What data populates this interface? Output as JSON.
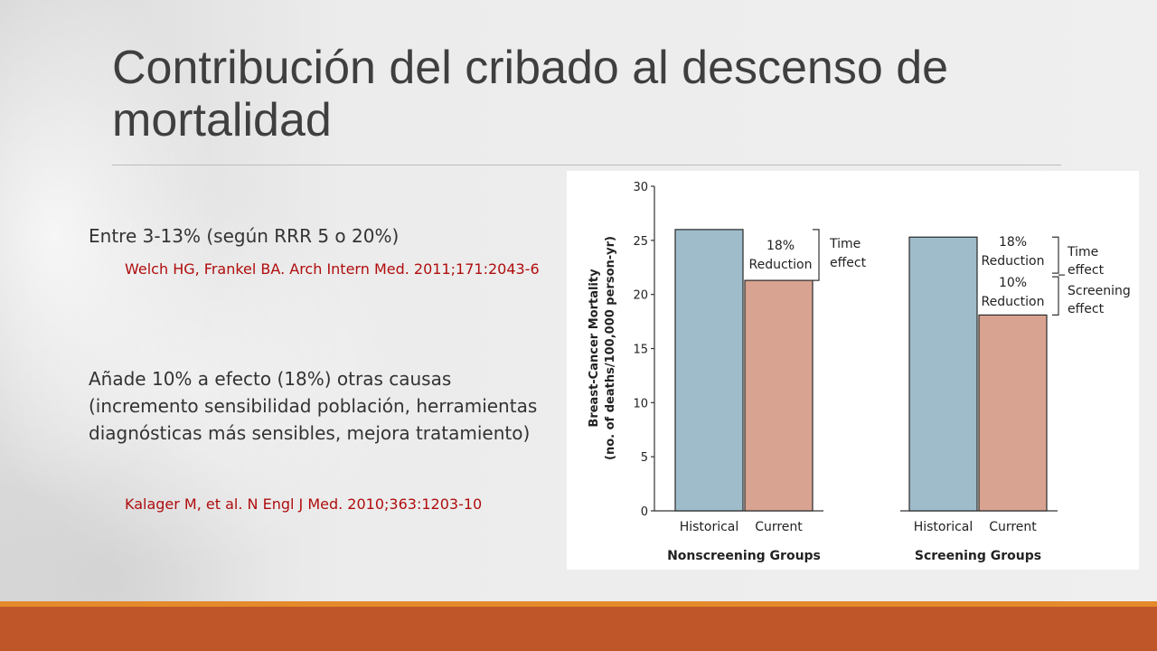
{
  "slide": {
    "title": "Contribución del cribado al descenso de mortalidad",
    "bullets": [
      {
        "text": "Entre 3-13% (según RRR 5 o 20%)",
        "ref": "Welch HG, Frankel BA. Arch Intern Med. 2011;171:2043-6"
      },
      {
        "text": "Añade 10% a efecto (18%) otras causas (incremento sensibilidad población, herramientas diagnósticas más sensibles, mejora tratamiento)",
        "ref": "Kalager M, et al. N Engl J Med. 2010;363:1203-10"
      }
    ]
  },
  "colors": {
    "historical_bar": "#9fbccb",
    "current_bar": "#d8a390",
    "footer_bar": "#bf5629",
    "footer_accent": "#e58a2a",
    "title_text": "#3f3f3f",
    "reference_text": "#b00d0d"
  },
  "chart_data": {
    "type": "bar",
    "ylabel": [
      "Breast-Cancer Mortality",
      "(no. of deaths/100,000 person-yr)"
    ],
    "ylim": [
      0,
      30
    ],
    "yticks": [
      0,
      5,
      10,
      15,
      20,
      25,
      30
    ],
    "groups": [
      {
        "name": "Nonscreening Groups",
        "categories": [
          "Historical",
          "Current"
        ],
        "values": [
          26.0,
          21.3
        ],
        "annotations": [
          {
            "label": [
              "18%",
              "Reduction"
            ],
            "bracket_label": [
              "Time",
              "effect"
            ]
          }
        ]
      },
      {
        "name": "Screening Groups",
        "categories": [
          "Historical",
          "Current"
        ],
        "values": [
          25.3,
          18.1
        ],
        "annotations": [
          {
            "label": [
              "18%",
              "Reduction"
            ],
            "bracket_label": [
              "Time",
              "effect"
            ]
          },
          {
            "label": [
              "10%",
              "Reduction"
            ],
            "bracket_label": [
              "Screening",
              "effect"
            ]
          }
        ]
      }
    ]
  }
}
